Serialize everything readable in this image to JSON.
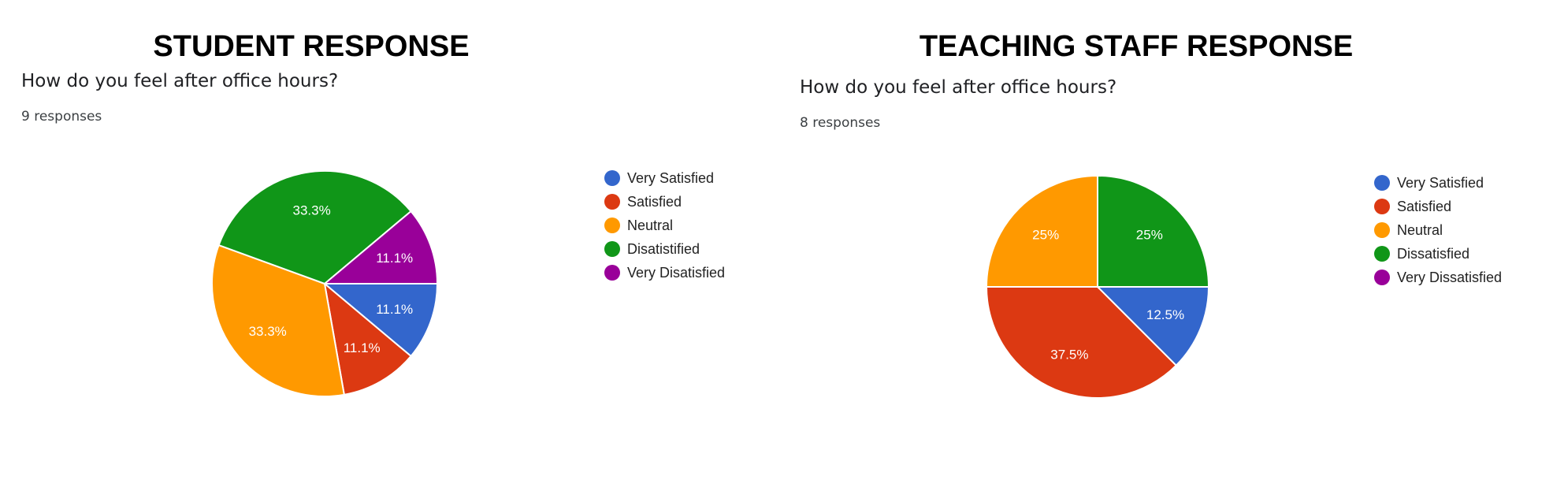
{
  "chart_data": [
    {
      "type": "pie",
      "title": "STUDENT RESPONSE",
      "subtitle": "How do you feel after office hours?",
      "responses_text": "9 responses",
      "legend_position": "right",
      "categories": [
        "Very Satisfied",
        "Satisfied",
        "Neutral",
        "Disatistified",
        "Very Disatisfied"
      ],
      "values": [
        11.1,
        11.1,
        33.3,
        33.3,
        11.1
      ],
      "data_labels": [
        "11.1%",
        "11.1%",
        "33.3%",
        "33.3%",
        "11.1%"
      ],
      "colors": [
        "#3366cc",
        "#dc3912",
        "#ff9900",
        "#109618",
        "#990099"
      ]
    },
    {
      "type": "pie",
      "title": "TEACHING STAFF RESPONSE",
      "subtitle": "How do you feel after office hours?",
      "responses_text": "8 responses",
      "legend_position": "right",
      "categories": [
        "Very Satisfied",
        "Satisfied",
        "Neutral",
        "Dissatisfied",
        "Very Dissatisfied"
      ],
      "values": [
        12.5,
        37.5,
        25,
        25,
        0
      ],
      "data_labels": [
        "12.5%",
        "37.5%",
        "25%",
        "25%",
        ""
      ],
      "colors": [
        "#3366cc",
        "#dc3912",
        "#ff9900",
        "#109618",
        "#990099"
      ]
    }
  ]
}
